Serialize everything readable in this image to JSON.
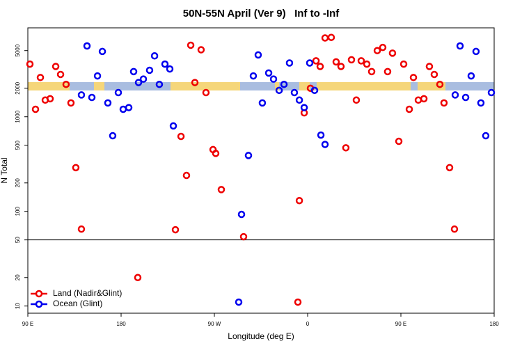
{
  "chart_data": {
    "type": "scatter",
    "title": "50N-55N April (Ver 9)   Inf to -Inf",
    "x_label": "Longitude (deg E)",
    "y_label": "N Total",
    "log_y": true,
    "reference_line": 50,
    "legend_position": "bottom-left",
    "xlim": [
      90,
      540
    ],
    "ylim": [
      8.4,
      8700
    ],
    "xticks": [
      {
        "value": 90,
        "label": "90 E"
      },
      180,
      {
        "value": 270,
        "label": "90 W"
      },
      {
        "value": 360,
        "label": "0"
      },
      {
        "value": 450,
        "label": "90 E"
      },
      {
        "value": 540,
        "label": "180"
      }
    ],
    "yticks": [
      10,
      20,
      50,
      100,
      200,
      500,
      1000,
      2000,
      5000
    ],
    "series": [
      {
        "name": "Land (Nadir&Glint)",
        "color": "#ee0000",
        "x": [
          92.0,
          97.4,
          102.1,
          106.8,
          111.5,
          116.9,
          121.6,
          126.9,
          131.6,
          136.3,
          141.7,
          196.1,
          232.4,
          237.8,
          243.1,
          247.2,
          251.2,
          257.2,
          261.9,
          268.7,
          271.3,
          276.7,
          298.2,
          350.6,
          352.0,
          356.7,
          362.7,
          368.1,
          372.1,
          376.8,
          382.8,
          387.5,
          392.2,
          396.9,
          402.3,
          407.0,
          411.7,
          417.1,
          421.8,
          427.2,
          432.5,
          437.2,
          441.9,
          448.0,
          452.7,
          458.1,
          462.1,
          466.8,
          472.2,
          477.5,
          482.2,
          487.6,
          491.6,
          497.0,
          501.7
        ],
        "values": [
          3600,
          1200,
          2600,
          1500,
          1550,
          3400,
          2800,
          2200,
          1400,
          290,
          65,
          20,
          64,
          620,
          240,
          5700,
          2300,
          5100,
          1800,
          450,
          410,
          170,
          54,
          11,
          130,
          1100,
          2000,
          3900,
          3400,
          6800,
          6900,
          3800,
          3400,
          470,
          4000,
          1500,
          3900,
          3600,
          3000,
          5000,
          5400,
          3000,
          4700,
          550,
          3600,
          1200,
          2600,
          1500,
          1550,
          3400,
          2800,
          2200,
          1400,
          290,
          65
        ]
      },
      {
        "name": "Ocean (Glint)",
        "color": "#0000ee",
        "x": [
          141.7,
          147.1,
          151.8,
          157.2,
          161.9,
          167.2,
          171.9,
          177.3,
          182.0,
          187.4,
          192.1,
          196.8,
          201.5,
          207.5,
          212.3,
          216.9,
          222.3,
          227.0,
          230.4,
          293.5,
          296.2,
          302.9,
          307.6,
          312.3,
          316.3,
          322.4,
          327.1,
          332.5,
          337.2,
          342.5,
          347.2,
          352.0,
          356.7,
          362.0,
          366.7,
          372.8,
          376.8,
          502.4,
          507.1,
          512.5,
          517.8,
          522.5,
          527.2,
          531.9,
          537.3
        ],
        "values": [
          1700,
          5600,
          1600,
          2700,
          4900,
          1400,
          630,
          1800,
          1200,
          1250,
          3000,
          2300,
          2500,
          3100,
          4400,
          2200,
          3600,
          3200,
          800,
          11,
          93,
          390,
          2700,
          4500,
          1400,
          2900,
          2500,
          1900,
          2200,
          3700,
          1800,
          1500,
          1250,
          3700,
          1900,
          640,
          510,
          1700,
          5600,
          1600,
          2700,
          4900,
          1400,
          630,
          1800
        ]
      }
    ]
  }
}
